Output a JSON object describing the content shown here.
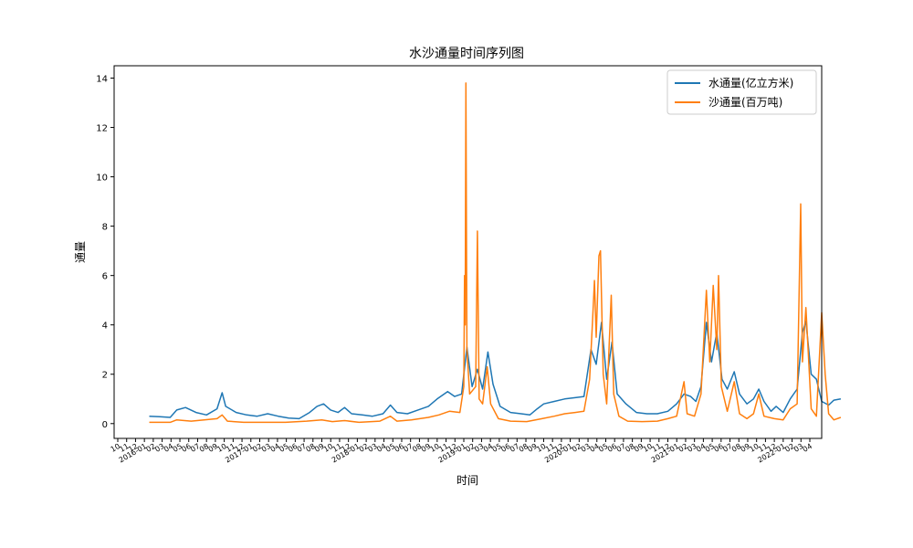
{
  "chart_data": {
    "type": "line",
    "title": "水沙通量时间序列图",
    "xlabel": "时间",
    "ylabel": "通量",
    "x_range": [
      "2016-10",
      "2022-04"
    ],
    "ylim": [
      -0.6,
      14.5
    ],
    "y_ticks": [
      0,
      2,
      4,
      6,
      8,
      10,
      12,
      14
    ],
    "x_tick_labels": [
      "10",
      "11",
      "12",
      "2016-01",
      "02",
      "03",
      "04",
      "05",
      "06",
      "07",
      "08",
      "09",
      "10",
      "11",
      "12",
      "2017-01",
      "02",
      "03",
      "04",
      "05",
      "06",
      "07",
      "08",
      "09",
      "10",
      "11",
      "12",
      "2018-01",
      "02",
      "03",
      "04",
      "05",
      "06",
      "07",
      "08",
      "09",
      "10",
      "11",
      "12",
      "2019-01",
      "02",
      "03",
      "04",
      "05",
      "06",
      "07",
      "08",
      "09",
      "10",
      "11",
      "12",
      "2020-01",
      "02",
      "03",
      "04",
      "05",
      "06",
      "07",
      "08",
      "09",
      "10",
      "11",
      "12",
      "2021-01",
      "02",
      "03",
      "04",
      "05",
      "06",
      "07",
      "08",
      "09",
      "10",
      "11",
      "12",
      "2022-01",
      "02",
      "03",
      "04"
    ],
    "grid": false,
    "legend_position": "top-right",
    "series": [
      {
        "name": "水通量(亿立方米)",
        "color": "#1f77b4",
        "points": [
          [
            "2017-01-01",
            0.3
          ],
          [
            "2017-02-01",
            0.28
          ],
          [
            "2017-03-01",
            0.25
          ],
          [
            "2017-03-20",
            0.55
          ],
          [
            "2017-04-15",
            0.65
          ],
          [
            "2017-05-15",
            0.45
          ],
          [
            "2017-06-15",
            0.35
          ],
          [
            "2017-07-15",
            0.6
          ],
          [
            "2017-07-30",
            1.25
          ],
          [
            "2017-08-10",
            0.7
          ],
          [
            "2017-09-10",
            0.45
          ],
          [
            "2017-10-10",
            0.35
          ],
          [
            "2017-11-10",
            0.3
          ],
          [
            "2017-12-10",
            0.4
          ],
          [
            "2018-01-10",
            0.3
          ],
          [
            "2018-02-10",
            0.22
          ],
          [
            "2018-03-10",
            0.2
          ],
          [
            "2018-04-10",
            0.45
          ],
          [
            "2018-05-01",
            0.7
          ],
          [
            "2018-05-20",
            0.8
          ],
          [
            "2018-06-10",
            0.55
          ],
          [
            "2018-07-01",
            0.45
          ],
          [
            "2018-07-20",
            0.65
          ],
          [
            "2018-08-10",
            0.4
          ],
          [
            "2018-09-10",
            0.35
          ],
          [
            "2018-10-10",
            0.3
          ],
          [
            "2018-11-10",
            0.4
          ],
          [
            "2018-12-01",
            0.75
          ],
          [
            "2018-12-20",
            0.45
          ],
          [
            "2019-01-20",
            0.4
          ],
          [
            "2019-02-20",
            0.55
          ],
          [
            "2019-03-20",
            0.7
          ],
          [
            "2019-04-15",
            1.0
          ],
          [
            "2019-05-15",
            1.3
          ],
          [
            "2019-06-05",
            1.1
          ],
          [
            "2019-06-25",
            1.2
          ],
          [
            "2019-07-10",
            3.1
          ],
          [
            "2019-07-25",
            1.5
          ],
          [
            "2019-08-10",
            2.2
          ],
          [
            "2019-08-25",
            1.4
          ],
          [
            "2019-09-10",
            2.9
          ],
          [
            "2019-09-25",
            1.6
          ],
          [
            "2019-10-15",
            0.7
          ],
          [
            "2019-11-15",
            0.45
          ],
          [
            "2019-12-15",
            0.4
          ],
          [
            "2020-01-10",
            0.35
          ],
          [
            "2020-02-01",
            0.6
          ],
          [
            "2020-02-20",
            0.8
          ],
          [
            "2020-03-20",
            0.9
          ],
          [
            "2020-04-20",
            1.0
          ],
          [
            "2020-05-20",
            1.05
          ],
          [
            "2020-06-15",
            1.1
          ],
          [
            "2020-07-05",
            3.0
          ],
          [
            "2020-07-20",
            2.4
          ],
          [
            "2020-08-05",
            4.1
          ],
          [
            "2020-08-20",
            1.8
          ],
          [
            "2020-09-05",
            3.3
          ],
          [
            "2020-09-20",
            1.2
          ],
          [
            "2020-10-15",
            0.8
          ],
          [
            "2020-11-15",
            0.45
          ],
          [
            "2020-12-15",
            0.4
          ],
          [
            "2021-01-15",
            0.4
          ],
          [
            "2021-02-15",
            0.5
          ],
          [
            "2021-03-10",
            0.8
          ],
          [
            "2021-04-01",
            1.2
          ],
          [
            "2021-04-20",
            1.1
          ],
          [
            "2021-05-05",
            0.9
          ],
          [
            "2021-05-20",
            1.5
          ],
          [
            "2021-06-05",
            4.1
          ],
          [
            "2021-06-20",
            2.5
          ],
          [
            "2021-07-05",
            3.7
          ],
          [
            "2021-07-20",
            1.8
          ],
          [
            "2021-08-05",
            1.4
          ],
          [
            "2021-08-25",
            2.1
          ],
          [
            "2021-09-10",
            1.2
          ],
          [
            "2021-10-01",
            0.8
          ],
          [
            "2021-10-20",
            1.0
          ],
          [
            "2021-11-05",
            1.4
          ],
          [
            "2021-11-20",
            0.9
          ],
          [
            "2021-12-10",
            0.5
          ],
          [
            "2021-12-25",
            0.7
          ],
          [
            "2022-01-15",
            0.45
          ],
          [
            "2022-02-05",
            1.0
          ],
          [
            "2022-02-25",
            1.4
          ],
          [
            "2022-03-10",
            3.7
          ],
          [
            "2022-03-20",
            4.15
          ],
          [
            "2022-04-05",
            2.0
          ],
          [
            "2022-04-20",
            1.8
          ],
          [
            "2022-05-05",
            0.9
          ],
          [
            "2022-05-25",
            0.75
          ],
          [
            "2022-06-10",
            0.95
          ],
          [
            "2022-06-30",
            1.0
          ]
        ]
      },
      {
        "name": "沙通量(百万吨)",
        "color": "#ff7f0e",
        "points": [
          [
            "2017-01-01",
            0.05
          ],
          [
            "2017-03-01",
            0.05
          ],
          [
            "2017-03-20",
            0.15
          ],
          [
            "2017-05-01",
            0.1
          ],
          [
            "2017-07-15",
            0.2
          ],
          [
            "2017-07-30",
            0.35
          ],
          [
            "2017-08-15",
            0.1
          ],
          [
            "2017-10-01",
            0.05
          ],
          [
            "2017-12-01",
            0.05
          ],
          [
            "2018-02-01",
            0.05
          ],
          [
            "2018-04-01",
            0.1
          ],
          [
            "2018-05-15",
            0.15
          ],
          [
            "2018-06-15",
            0.08
          ],
          [
            "2018-07-20",
            0.12
          ],
          [
            "2018-09-01",
            0.05
          ],
          [
            "2018-11-01",
            0.1
          ],
          [
            "2018-12-01",
            0.3
          ],
          [
            "2018-12-20",
            0.1
          ],
          [
            "2019-02-01",
            0.15
          ],
          [
            "2019-03-20",
            0.25
          ],
          [
            "2019-04-20",
            0.35
          ],
          [
            "2019-05-20",
            0.5
          ],
          [
            "2019-06-20",
            0.45
          ],
          [
            "2019-07-01",
            1.5
          ],
          [
            "2019-07-03",
            6.0
          ],
          [
            "2019-07-05",
            4.0
          ],
          [
            "2019-07-07",
            13.8
          ],
          [
            "2019-07-10",
            3.0
          ],
          [
            "2019-07-18",
            1.2
          ],
          [
            "2019-08-05",
            1.5
          ],
          [
            "2019-08-10",
            7.8
          ],
          [
            "2019-08-15",
            1.0
          ],
          [
            "2019-08-25",
            0.8
          ],
          [
            "2019-09-08",
            2.3
          ],
          [
            "2019-09-18",
            0.8
          ],
          [
            "2019-10-10",
            0.2
          ],
          [
            "2019-11-15",
            0.1
          ],
          [
            "2020-01-01",
            0.08
          ],
          [
            "2020-02-15",
            0.2
          ],
          [
            "2020-03-20",
            0.3
          ],
          [
            "2020-04-20",
            0.4
          ],
          [
            "2020-05-20",
            0.45
          ],
          [
            "2020-06-15",
            0.5
          ],
          [
            "2020-07-01",
            1.8
          ],
          [
            "2020-07-10",
            4.3
          ],
          [
            "2020-07-15",
            5.8
          ],
          [
            "2020-07-20",
            3.5
          ],
          [
            "2020-07-28",
            6.8
          ],
          [
            "2020-08-02",
            7.0
          ],
          [
            "2020-08-10",
            2.0
          ],
          [
            "2020-08-20",
            0.8
          ],
          [
            "2020-09-03",
            5.2
          ],
          [
            "2020-09-10",
            1.2
          ],
          [
            "2020-09-25",
            0.3
          ],
          [
            "2020-10-20",
            0.1
          ],
          [
            "2020-12-01",
            0.08
          ],
          [
            "2021-01-15",
            0.1
          ],
          [
            "2021-02-15",
            0.2
          ],
          [
            "2021-03-10",
            0.3
          ],
          [
            "2021-04-01",
            1.7
          ],
          [
            "2021-04-10",
            0.4
          ],
          [
            "2021-05-01",
            0.3
          ],
          [
            "2021-05-20",
            1.2
          ],
          [
            "2021-06-05",
            5.4
          ],
          [
            "2021-06-15",
            2.5
          ],
          [
            "2021-06-25",
            5.6
          ],
          [
            "2021-07-05",
            3.0
          ],
          [
            "2021-07-10",
            6.0
          ],
          [
            "2021-07-18",
            1.5
          ],
          [
            "2021-08-05",
            0.5
          ],
          [
            "2021-08-25",
            1.7
          ],
          [
            "2021-09-10",
            0.4
          ],
          [
            "2021-10-01",
            0.2
          ],
          [
            "2021-10-20",
            0.4
          ],
          [
            "2021-11-05",
            1.2
          ],
          [
            "2021-11-20",
            0.3
          ],
          [
            "2021-12-20",
            0.2
          ],
          [
            "2022-01-15",
            0.15
          ],
          [
            "2022-02-05",
            0.6
          ],
          [
            "2022-02-25",
            0.8
          ],
          [
            "2022-03-05",
            8.9
          ],
          [
            "2022-03-10",
            2.5
          ],
          [
            "2022-03-20",
            4.7
          ],
          [
            "2022-04-05",
            0.6
          ],
          [
            "2022-04-20",
            0.3
          ],
          [
            "2022-05-05",
            4.5
          ],
          [
            "2022-05-15",
            2.0
          ],
          [
            "2022-05-25",
            0.4
          ],
          [
            "2022-06-10",
            0.15
          ],
          [
            "2022-06-30",
            0.25
          ]
        ]
      }
    ]
  }
}
